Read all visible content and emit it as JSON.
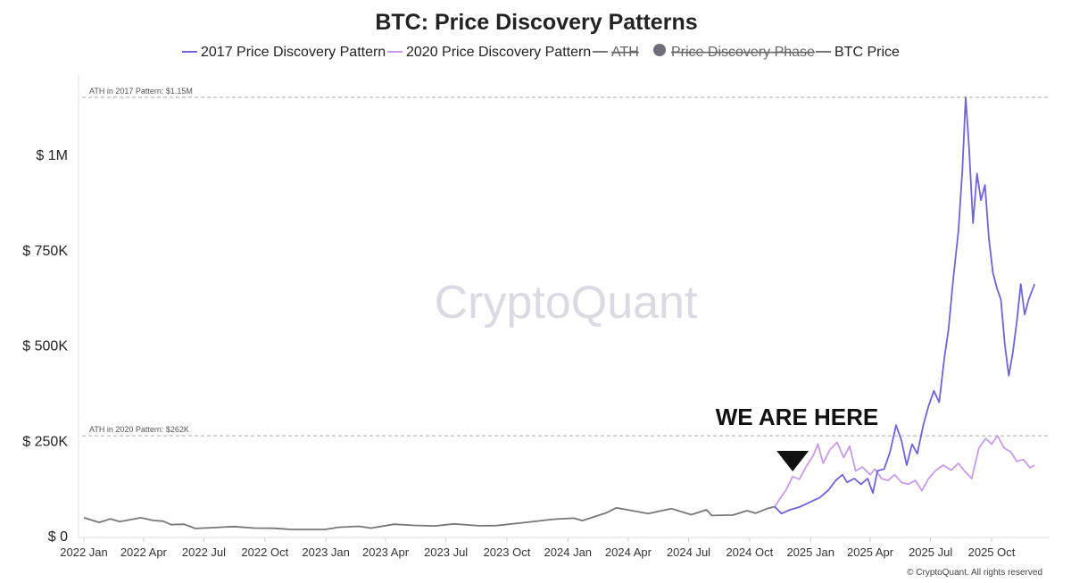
{
  "chart_data": {
    "type": "line",
    "title": "BTC: Price Discovery Patterns",
    "legend": [
      {
        "label": "2017 Price Discovery Pattern",
        "color": "#6f63d9",
        "marker": "line",
        "struck": false
      },
      {
        "label": "2020 Price Discovery Pattern",
        "color": "#c79be6",
        "marker": "line",
        "struck": false
      },
      {
        "label": "ATH",
        "color": "#777777",
        "marker": "line",
        "struck": true
      },
      {
        "label": "Price Discovery Phase",
        "color": "#777777",
        "marker": "dot",
        "struck": true
      },
      {
        "label": "BTC Price",
        "color": "#777777",
        "marker": "line",
        "struck": false
      }
    ],
    "legend_position": "top-center",
    "y_axis": {
      "min": 0,
      "max": 1200000,
      "ticks": [
        0,
        250000,
        500000,
        750000,
        1000000
      ],
      "tick_labels": [
        "$ 0",
        "$ 250K",
        "$ 500K",
        "$ 750K",
        "$ 1M"
      ]
    },
    "x_axis": {
      "start": "2022-01-01",
      "end": "2025-12-10",
      "ticks": [
        {
          "date": "2022-01-01",
          "label": "2022 Jan"
        },
        {
          "date": "2022-04-01",
          "label": "2022 Apr"
        },
        {
          "date": "2022-07-01",
          "label": "2022 Jul"
        },
        {
          "date": "2022-10-01",
          "label": "2022 Oct"
        },
        {
          "date": "2023-01-01",
          "label": "2023 Jan"
        },
        {
          "date": "2023-04-01",
          "label": "2023 Apr"
        },
        {
          "date": "2023-07-01",
          "label": "2023 Jul"
        },
        {
          "date": "2023-10-01",
          "label": "2023 Oct"
        },
        {
          "date": "2024-01-01",
          "label": "2024 Jan"
        },
        {
          "date": "2024-04-01",
          "label": "2024 Apr"
        },
        {
          "date": "2024-07-01",
          "label": "2024 Jul"
        },
        {
          "date": "2024-10-01",
          "label": "2024 Oct"
        },
        {
          "date": "2025-01-01",
          "label": "2025 Jan"
        },
        {
          "date": "2025-04-01",
          "label": "2025 Apr"
        },
        {
          "date": "2025-07-01",
          "label": "2025 Jul"
        },
        {
          "date": "2025-10-01",
          "label": "2025 Oct"
        }
      ]
    },
    "grid": false,
    "reference_lines": [
      {
        "value": 1150000,
        "label": "ATH in 2017 Pattern: $1.15M"
      },
      {
        "value": 262000,
        "label": "ATH in 2020 Pattern: $262K"
      }
    ],
    "annotation": {
      "text": "WE ARE HERE",
      "date": "2024-12-05",
      "value": 150000
    },
    "watermark": "CryptoQuant",
    "copyright": "© CryptoQuant. All rights reserved",
    "series": [
      {
        "name": "BTC Price",
        "color": "#777777",
        "points": [
          [
            "2022-01-01",
            47000
          ],
          [
            "2022-01-24",
            35000
          ],
          [
            "2022-02-10",
            44000
          ],
          [
            "2022-02-24",
            37000
          ],
          [
            "2022-03-28",
            47000
          ],
          [
            "2022-04-15",
            40000
          ],
          [
            "2022-05-01",
            38000
          ],
          [
            "2022-05-12",
            29000
          ],
          [
            "2022-06-01",
            30000
          ],
          [
            "2022-06-18",
            19000
          ],
          [
            "2022-07-15",
            21000
          ],
          [
            "2022-08-15",
            24000
          ],
          [
            "2022-09-15",
            20000
          ],
          [
            "2022-10-15",
            19500
          ],
          [
            "2022-11-10",
            16500
          ],
          [
            "2022-12-31",
            16500
          ],
          [
            "2023-01-20",
            22000
          ],
          [
            "2023-02-20",
            24500
          ],
          [
            "2023-03-10",
            20000
          ],
          [
            "2023-04-14",
            30000
          ],
          [
            "2023-05-15",
            27000
          ],
          [
            "2023-06-15",
            25500
          ],
          [
            "2023-07-13",
            31000
          ],
          [
            "2023-08-20",
            26000
          ],
          [
            "2023-09-15",
            26500
          ],
          [
            "2023-10-25",
            34000
          ],
          [
            "2023-12-10",
            43000
          ],
          [
            "2024-01-10",
            46000
          ],
          [
            "2024-01-23",
            39500
          ],
          [
            "2024-02-28",
            60000
          ],
          [
            "2024-03-14",
            73000
          ],
          [
            "2024-05-01",
            58000
          ],
          [
            "2024-06-05",
            71000
          ],
          [
            "2024-07-05",
            55000
          ],
          [
            "2024-07-28",
            68000
          ],
          [
            "2024-08-05",
            53000
          ],
          [
            "2024-09-06",
            54000
          ],
          [
            "2024-09-27",
            65500
          ],
          [
            "2024-10-10",
            59000
          ],
          [
            "2024-10-29",
            72000
          ],
          [
            "2024-11-08",
            76000
          ]
        ]
      },
      {
        "name": "2020 Price Discovery Pattern",
        "color": "#c79be6",
        "points": [
          [
            "2024-11-08",
            76000
          ],
          [
            "2024-11-15",
            95000
          ],
          [
            "2024-11-25",
            120000
          ],
          [
            "2024-12-05",
            155000
          ],
          [
            "2024-12-15",
            148000
          ],
          [
            "2024-12-25",
            180000
          ],
          [
            "2025-01-05",
            210000
          ],
          [
            "2025-01-12",
            240000
          ],
          [
            "2025-01-20",
            190000
          ],
          [
            "2025-01-30",
            225000
          ],
          [
            "2025-02-10",
            245000
          ],
          [
            "2025-02-20",
            205000
          ],
          [
            "2025-03-01",
            235000
          ],
          [
            "2025-03-10",
            170000
          ],
          [
            "2025-03-20",
            180000
          ],
          [
            "2025-04-01",
            160000
          ],
          [
            "2025-04-08",
            175000
          ],
          [
            "2025-04-18",
            150000
          ],
          [
            "2025-04-28",
            145000
          ],
          [
            "2025-05-08",
            160000
          ],
          [
            "2025-05-18",
            140000
          ],
          [
            "2025-05-28",
            135000
          ],
          [
            "2025-06-08",
            145000
          ],
          [
            "2025-06-18",
            118000
          ],
          [
            "2025-06-28",
            150000
          ],
          [
            "2025-07-08",
            170000
          ],
          [
            "2025-07-20",
            185000
          ],
          [
            "2025-08-01",
            172000
          ],
          [
            "2025-08-12",
            190000
          ],
          [
            "2025-08-22",
            168000
          ],
          [
            "2025-09-01",
            150000
          ],
          [
            "2025-09-12",
            230000
          ],
          [
            "2025-09-22",
            255000
          ],
          [
            "2025-10-01",
            240000
          ],
          [
            "2025-10-10",
            262000
          ],
          [
            "2025-10-20",
            230000
          ],
          [
            "2025-10-30",
            220000
          ],
          [
            "2025-11-08",
            195000
          ],
          [
            "2025-11-18",
            200000
          ],
          [
            "2025-11-28",
            178000
          ],
          [
            "2025-12-05",
            185000
          ]
        ]
      },
      {
        "name": "2017 Price Discovery Pattern",
        "color": "#6f63d9",
        "points": [
          [
            "2024-11-08",
            76000
          ],
          [
            "2024-11-18",
            58000
          ],
          [
            "2024-12-01",
            68000
          ],
          [
            "2024-12-15",
            75000
          ],
          [
            "2024-12-31",
            88000
          ],
          [
            "2025-01-15",
            100000
          ],
          [
            "2025-01-28",
            120000
          ],
          [
            "2025-02-08",
            145000
          ],
          [
            "2025-02-18",
            160000
          ],
          [
            "2025-02-25",
            140000
          ],
          [
            "2025-03-08",
            150000
          ],
          [
            "2025-03-18",
            135000
          ],
          [
            "2025-03-28",
            150000
          ],
          [
            "2025-04-05",
            112000
          ],
          [
            "2025-04-12",
            170000
          ],
          [
            "2025-04-22",
            175000
          ],
          [
            "2025-05-01",
            220000
          ],
          [
            "2025-05-10",
            290000
          ],
          [
            "2025-05-18",
            250000
          ],
          [
            "2025-05-26",
            185000
          ],
          [
            "2025-06-03",
            240000
          ],
          [
            "2025-06-11",
            215000
          ],
          [
            "2025-06-20",
            290000
          ],
          [
            "2025-06-28",
            340000
          ],
          [
            "2025-07-06",
            380000
          ],
          [
            "2025-07-14",
            350000
          ],
          [
            "2025-07-22",
            470000
          ],
          [
            "2025-07-28",
            540000
          ],
          [
            "2025-08-04",
            670000
          ],
          [
            "2025-08-12",
            800000
          ],
          [
            "2025-08-18",
            960000
          ],
          [
            "2025-08-23",
            1150000
          ],
          [
            "2025-08-28",
            1020000
          ],
          [
            "2025-09-03",
            820000
          ],
          [
            "2025-09-09",
            950000
          ],
          [
            "2025-09-15",
            880000
          ],
          [
            "2025-09-21",
            920000
          ],
          [
            "2025-09-27",
            780000
          ],
          [
            "2025-10-03",
            690000
          ],
          [
            "2025-10-09",
            650000
          ],
          [
            "2025-10-15",
            620000
          ],
          [
            "2025-10-21",
            500000
          ],
          [
            "2025-10-27",
            420000
          ],
          [
            "2025-11-02",
            480000
          ],
          [
            "2025-11-08",
            560000
          ],
          [
            "2025-11-14",
            660000
          ],
          [
            "2025-11-20",
            580000
          ],
          [
            "2025-11-26",
            620000
          ],
          [
            "2025-12-05",
            660000
          ]
        ]
      }
    ]
  }
}
